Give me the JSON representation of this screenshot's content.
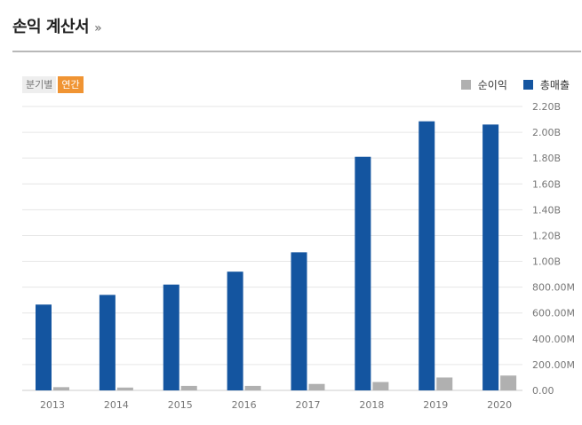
{
  "header": {
    "title": "손익 계산서",
    "arrow": "»"
  },
  "period_toggle": {
    "quarterly_label": "분기별",
    "annual_label": "연간",
    "active": "annual",
    "active_color": "#f09433"
  },
  "legend": [
    {
      "label": "순이익",
      "color": "#b0b0b0"
    },
    {
      "label": "총매출",
      "color": "#1455a0"
    }
  ],
  "chart_data": {
    "type": "bar",
    "categories": [
      "2013",
      "2014",
      "2015",
      "2016",
      "2017",
      "2018",
      "2019",
      "2020"
    ],
    "series": [
      {
        "name": "총매출",
        "color": "#1455a0",
        "values": [
          665,
          740,
          820,
          920,
          1070,
          1810,
          2085,
          2060
        ]
      },
      {
        "name": "순이익",
        "color": "#b0b0b0",
        "values": [
          25,
          22,
          35,
          35,
          50,
          65,
          100,
          115
        ]
      }
    ],
    "unit": "M",
    "ylim": [
      0,
      2200
    ],
    "yticks": [
      {
        "value": 0,
        "label": "0.00"
      },
      {
        "value": 200,
        "label": "200.00M"
      },
      {
        "value": 400,
        "label": "400.00M"
      },
      {
        "value": 600,
        "label": "600.00M"
      },
      {
        "value": 800,
        "label": "800.00M"
      },
      {
        "value": 1000,
        "label": "1.00B"
      },
      {
        "value": 1200,
        "label": "1.20B"
      },
      {
        "value": 1400,
        "label": "1.40B"
      },
      {
        "value": 1600,
        "label": "1.60B"
      },
      {
        "value": 1800,
        "label": "1.80B"
      },
      {
        "value": 2000,
        "label": "2.00B"
      },
      {
        "value": 2200,
        "label": "2.20B"
      }
    ],
    "y_axis_position": "right",
    "grid": true,
    "legend_position": "top-right"
  }
}
